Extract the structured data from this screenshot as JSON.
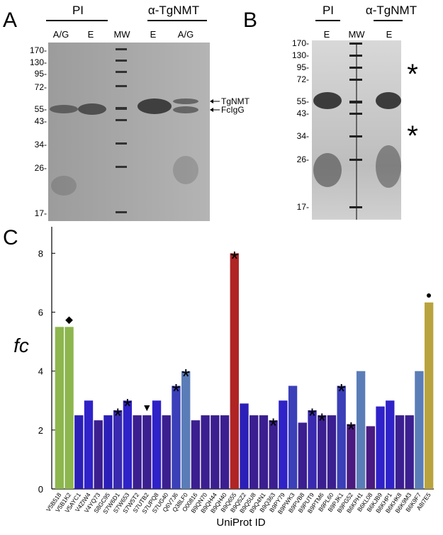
{
  "panel_a": {
    "label": "A",
    "groups": [
      "PI",
      "α-TgNMT"
    ],
    "lanes": [
      "A/G",
      "E",
      "MW",
      "E",
      "A/G"
    ],
    "mw_markers": [
      "170-",
      "130-",
      "95-",
      "72-",
      "55-",
      "43-",
      "34-",
      "26-",
      "17-"
    ],
    "arrows": [
      "TgNMT",
      "FcIgG"
    ]
  },
  "panel_b": {
    "label": "B",
    "groups": [
      "PI",
      "α-TgNMT"
    ],
    "lanes": [
      "E",
      "MW",
      "E"
    ],
    "mw_markers": [
      "170-",
      "130-",
      "95-",
      "72-",
      "55-",
      "43-",
      "34-",
      "26-",
      "17-"
    ],
    "marks": [
      "*",
      "*"
    ]
  },
  "chart_data": {
    "type": "bar",
    "panel_label": "C",
    "y_label": "fc",
    "x_label": "UniProt ID",
    "categories": [
      "V5B518",
      "V5B1K2",
      "V5AYC1",
      "V4ZIW4",
      "V4YQ73",
      "S8GC95",
      "S7W6D1",
      "S7W653",
      "S7W5T2",
      "S7UTB2",
      "S7UPQ8",
      "S7UG40",
      "Q6V7J6",
      "Q38LF0",
      "O00816",
      "B9QN70",
      "B9QH44",
      "B9QH40",
      "B9Q655",
      "B9Q5Z2",
      "B9Q5U8",
      "B9Q4N1",
      "B9Q363",
      "B9PY79",
      "B9PWK3",
      "B9PVB8",
      "B9PUT9",
      "B9PTM6",
      "B9PL60",
      "B9PJK1",
      "B9PG52",
      "B6KPH1",
      "B6KL08",
      "B6KJB9",
      "B6KHP1",
      "B6KHK8",
      "B6K9M3",
      "B6K9F7",
      "A8I7E5"
    ],
    "values": [
      5.5,
      5.5,
      2.5,
      3.0,
      2.33,
      2.5,
      2.67,
      3.0,
      2.5,
      2.5,
      3.0,
      2.5,
      3.5,
      4.0,
      2.33,
      2.5,
      2.5,
      2.5,
      8.0,
      2.9,
      2.5,
      2.5,
      2.33,
      3.0,
      3.5,
      2.25,
      2.67,
      2.5,
      2.5,
      3.5,
      2.2,
      4.0,
      2.13,
      2.8,
      3.0,
      2.5,
      2.5,
      4.0,
      6.33
    ],
    "colors": [
      "#8db64e",
      "#8db64e",
      "#2b1fb8",
      "#2f22c8",
      "#3b1f90",
      "#2b1fb8",
      "#3a2ab0",
      "#2f22c8",
      "#3b1f90",
      "#3b1f90",
      "#2f22c8",
      "#3b1f90",
      "#3b3fb8",
      "#5a7db8",
      "#3b1f90",
      "#3b1f90",
      "#3b1f90",
      "#3b1f90",
      "#b02424",
      "#2b1fb8",
      "#3b1f90",
      "#3b1f90",
      "#3b1f90",
      "#2f22c8",
      "#3b3fb8",
      "#3b1f90",
      "#3a2ab0",
      "#3b1f90",
      "#3b1f90",
      "#3b3fb8",
      "#4a1a80",
      "#5a7db8",
      "#4a1a80",
      "#2f22c8",
      "#2f22c8",
      "#3b1f90",
      "#3b1f90",
      "#5a7db8",
      "#b9a33e"
    ],
    "ylim": [
      0,
      8.9
    ],
    "yticks": [
      0,
      2,
      4,
      6,
      8
    ],
    "annotations": [
      {
        "category": "V5B1K2",
        "text": "◆"
      },
      {
        "category": "S7W6D1",
        "text": "*"
      },
      {
        "category": "S7W653",
        "text": "*"
      },
      {
        "category": "S7UTB2",
        "text": "▼"
      },
      {
        "category": "Q6V7J6",
        "text": "*"
      },
      {
        "category": "Q38LF0",
        "text": "*"
      },
      {
        "category": "B9Q655",
        "text": "*"
      },
      {
        "category": "B9Q363",
        "text": "*"
      },
      {
        "category": "B9PUT9",
        "text": "*"
      },
      {
        "category": "B9PTM6",
        "text": "*"
      },
      {
        "category": "B9PJK1",
        "text": "*"
      },
      {
        "category": "B9PG52",
        "text": "*"
      },
      {
        "category": "A8I7E5",
        "text": "●"
      }
    ]
  }
}
